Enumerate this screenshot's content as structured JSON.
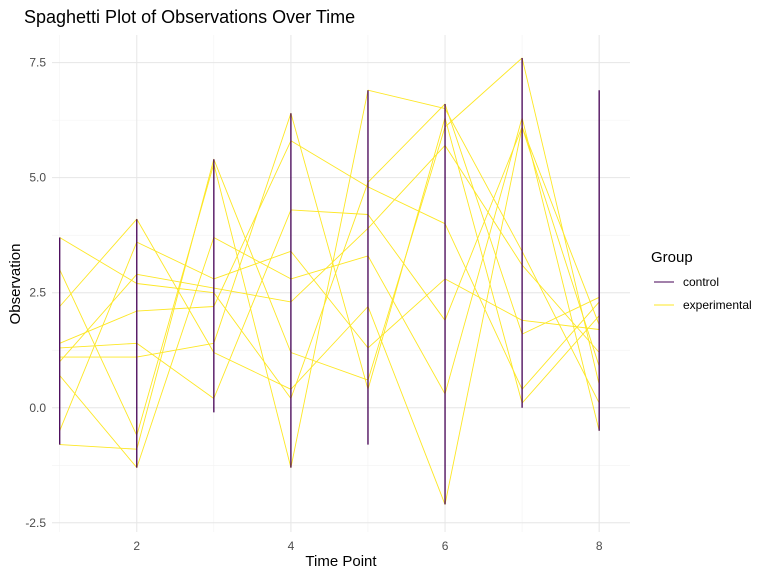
{
  "chart_data": {
    "type": "line",
    "title": "Spaghetti Plot of Observations Over Time",
    "xlabel": "Time Point",
    "ylabel": "Observation",
    "xlim": [
      0.9,
      8.4
    ],
    "ylim": [
      -2.7,
      8.1
    ],
    "x_ticks": [
      2,
      4,
      6,
      8
    ],
    "y_ticks": [
      -2.5,
      0.0,
      2.5,
      5.0,
      7.5
    ],
    "x_tick_labels": [
      "2",
      "4",
      "6",
      "8"
    ],
    "y_tick_labels": [
      "-2.5",
      "0.0",
      "2.5",
      "5.0",
      "7.5"
    ],
    "grid": true,
    "legend": {
      "title": "Group",
      "position": "right",
      "entries": [
        {
          "label": "control",
          "color": "#440154"
        },
        {
          "label": "experimental",
          "color": "#FDE725"
        }
      ]
    },
    "x": [
      1,
      2,
      3,
      4,
      5,
      6,
      7,
      8
    ],
    "control_ranges": [
      {
        "x": 1,
        "min": -0.8,
        "max": 3.7
      },
      {
        "x": 2,
        "min": -1.3,
        "max": 4.1
      },
      {
        "x": 3,
        "min": -0.1,
        "max": 5.4
      },
      {
        "x": 4,
        "min": -1.3,
        "max": 6.4
      },
      {
        "x": 5,
        "min": -0.8,
        "max": 6.9
      },
      {
        "x": 6,
        "min": -2.1,
        "max": 6.6
      },
      {
        "x": 7,
        "min": -0.0,
        "max": 7.6
      },
      {
        "x": 8,
        "min": -0.5,
        "max": 6.9
      }
    ],
    "series": [
      {
        "group": "experimental",
        "values": [
          3.7,
          2.7,
          2.5,
          0.2,
          4.9,
          6.6,
          1.6,
          2.4
        ]
      },
      {
        "group": "experimental",
        "values": [
          -0.8,
          -0.9,
          5.4,
          1.2,
          0.6,
          6.1,
          7.6,
          0.5
        ]
      },
      {
        "group": "experimental",
        "values": [
          1.3,
          1.4,
          0.2,
          4.3,
          4.2,
          1.9,
          6.1,
          1.8
        ]
      },
      {
        "group": "experimental",
        "values": [
          1.1,
          1.1,
          1.4,
          6.4,
          0.4,
          6.3,
          0.1,
          2.0
        ]
      },
      {
        "group": "experimental",
        "values": [
          0.7,
          -1.3,
          3.7,
          2.8,
          3.3,
          0.3,
          6.3,
          -0.5
        ]
      },
      {
        "group": "experimental",
        "values": [
          -0.5,
          3.6,
          2.8,
          3.4,
          1.3,
          2.8,
          1.9,
          1.7
        ]
      },
      {
        "group": "experimental",
        "values": [
          3.0,
          -0.6,
          5.3,
          -1.3,
          6.9,
          6.5,
          3.4,
          0.1
        ]
      },
      {
        "group": "experimental",
        "values": [
          2.2,
          4.1,
          1.2,
          0.4,
          2.2,
          -2.1,
          6.1,
          0.9
        ]
      },
      {
        "group": "experimental",
        "values": [
          1.0,
          2.9,
          2.6,
          2.3,
          3.9,
          5.7,
          3.1,
          1.2
        ]
      },
      {
        "group": "experimental",
        "values": [
          1.4,
          2.1,
          2.2,
          5.8,
          4.8,
          4.0,
          0.4,
          2.3
        ]
      }
    ]
  }
}
